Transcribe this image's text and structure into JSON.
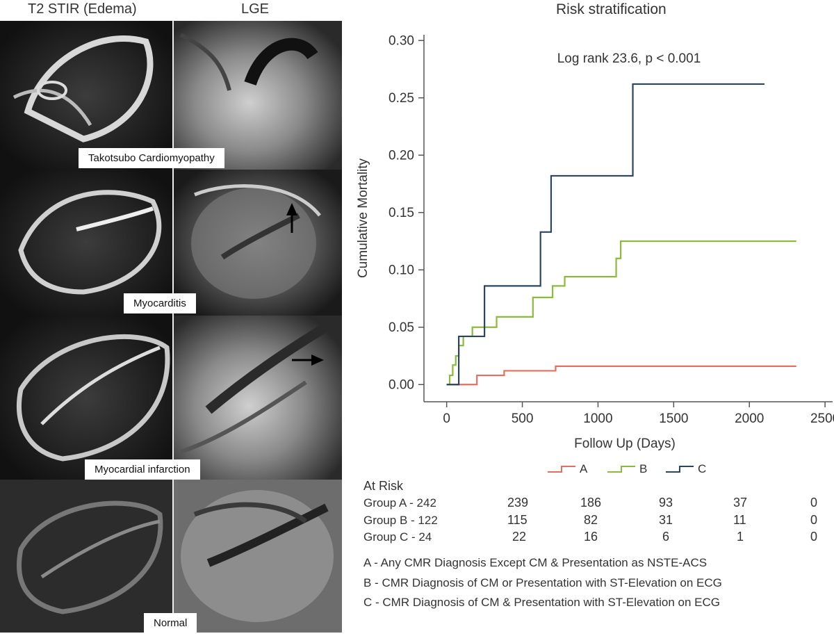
{
  "panel": {
    "col1_title": "T2 STIR (Edema)",
    "col2_title": "LGE",
    "rows": [
      {
        "label": "Takotsubo Cardiomyopathy",
        "arrow": false
      },
      {
        "label": "Myocarditis",
        "arrow": true
      },
      {
        "label": "Myocardial infarction",
        "arrow": true
      },
      {
        "label": "Normal",
        "arrow": false
      }
    ]
  },
  "chart_data": {
    "type": "line",
    "title": "Risk stratification",
    "annotation": "Log rank 23.6, p < 0.001",
    "xlabel": "Follow Up (Days)",
    "ylabel": "Cumulative Mortality",
    "xlim": [
      -150,
      2550
    ],
    "ylim": [
      -0.015,
      0.305
    ],
    "xticks": [
      0,
      500,
      1000,
      1500,
      2000,
      2500
    ],
    "yticks": [
      0.0,
      0.05,
      0.1,
      0.15,
      0.2,
      0.25,
      0.3
    ],
    "ytick_labels": [
      "0.00",
      "0.05",
      "0.10",
      "0.15",
      "0.20",
      "0.25",
      "0.30"
    ],
    "step": true,
    "series": [
      {
        "name": "A",
        "color": "#e1705f",
        "x": [
          0,
          200,
          380,
          720,
          2310
        ],
        "y": [
          0.0,
          0.008,
          0.012,
          0.016,
          0.016
        ]
      },
      {
        "name": "B",
        "color": "#8cba3c",
        "x": [
          0,
          20,
          40,
          60,
          80,
          110,
          170,
          240,
          330,
          570,
          600,
          700,
          780,
          1120,
          1150,
          2310
        ],
        "y": [
          0.0,
          0.008,
          0.017,
          0.025,
          0.034,
          0.042,
          0.05,
          0.05,
          0.059,
          0.076,
          0.076,
          0.086,
          0.094,
          0.11,
          0.125,
          0.125
        ]
      },
      {
        "name": "C",
        "color": "#2b4560",
        "x": [
          0,
          80,
          250,
          620,
          690,
          1230,
          2100
        ],
        "y": [
          0.0,
          0.042,
          0.086,
          0.133,
          0.182,
          0.262,
          0.262
        ]
      }
    ],
    "legend_position": "bottom"
  },
  "at_risk": {
    "title": "At Risk",
    "groups": [
      {
        "label": "Group A - 242",
        "values": [
          "239",
          "186",
          "93",
          "37",
          "0"
        ]
      },
      {
        "label": "Group B - 122",
        "values": [
          "115",
          "82",
          "31",
          "11",
          "0"
        ]
      },
      {
        "label": "Group C -  24",
        "values": [
          "22",
          "16",
          "6",
          "1",
          "0"
        ]
      }
    ]
  },
  "notes": [
    "A - Any CMR Diagnosis Except CM & Presentation as NSTE-ACS",
    "B - CMR Diagnosis of CM or Presentation with ST-Elevation on ECG",
    "C - CMR Diagnosis of CM & Presentation with ST-Elevation on ECG"
  ]
}
